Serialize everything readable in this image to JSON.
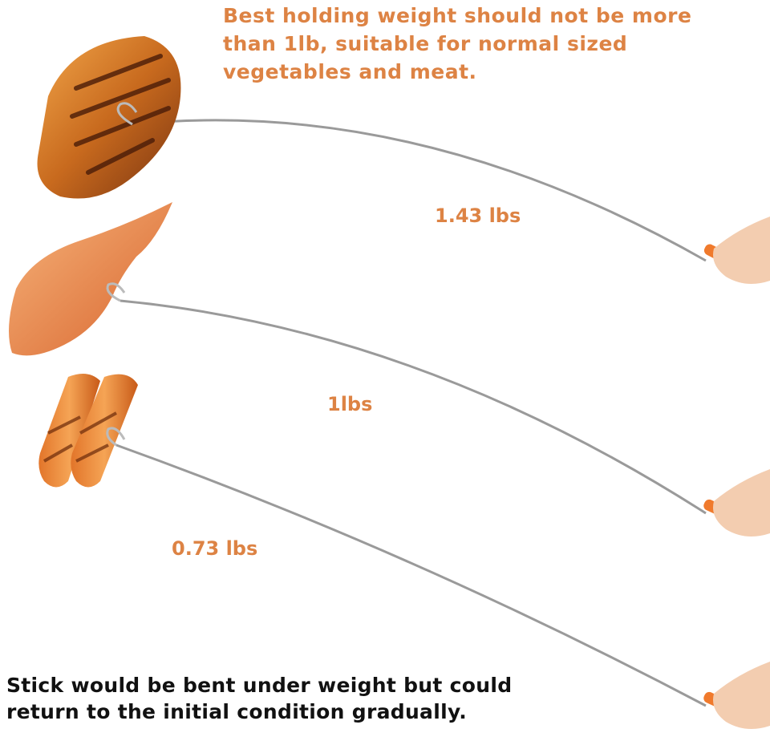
{
  "top_note": "Best holding weight should not be more\nthan 1lb, suitable for normal sized\nvegetables and meat.",
  "weights": [
    "1.43 lbs",
    "1lbs",
    "0.73 lbs"
  ],
  "bottom_note": "Stick would be bent under weight but could\nreturn to the initial condition gradually.",
  "colors": {
    "accent": "#dd8344",
    "handle": "#f07a2c",
    "text_dark": "#111111"
  },
  "items": [
    "steak",
    "chicken-wing",
    "sausages"
  ]
}
